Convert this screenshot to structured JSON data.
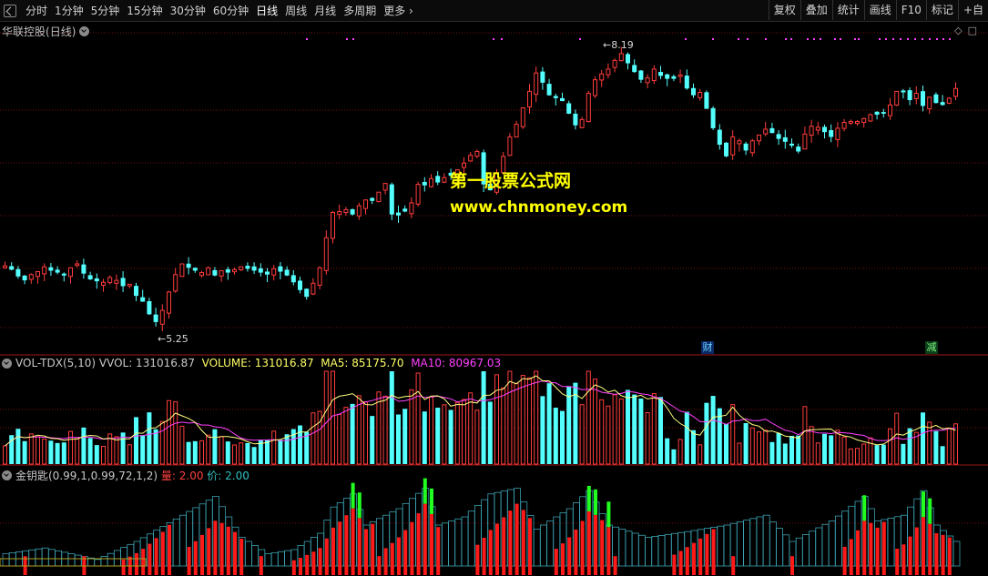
{
  "toolbar": {
    "periods": [
      "分时",
      "1分钟",
      "5分钟",
      "15分钟",
      "30分钟",
      "60分钟",
      "日线",
      "周线",
      "月线",
      "多周期",
      "更多"
    ],
    "active_period": "日线",
    "right_buttons": [
      "复权",
      "叠加",
      "统计",
      "画线",
      "F10",
      "标记",
      "+自"
    ]
  },
  "main_panel": {
    "stock_name": "华联控股",
    "period": "(日线)",
    "high_label": "8.19",
    "low_label": "5.25",
    "event_tags": [
      "财",
      "减"
    ]
  },
  "watermark": {
    "line1": "第一股票公式网",
    "line2": "www.chnmoney.com"
  },
  "volume_panel": {
    "name": "VOL-TDX(5,10)",
    "vvol": "VVOL: 131016.87",
    "volume": "VOLUME: 131016.87",
    "ma5": "MA5: 85175.70",
    "ma10": "MA10: 80967.03"
  },
  "key_panel": {
    "name": "金钥匙(0.99,1,0.99,72,1,2)",
    "liang": "量: 2.00",
    "jia": "价: 2.00"
  },
  "colors": {
    "up": "#ff3c3c",
    "down": "#54ffff",
    "grid": "#7a1010",
    "ma5": "#ffff80",
    "ma10": "#ff40ff",
    "key_red": "#ff1a1a",
    "key_green": "#20ff20",
    "key_cyan": "#3aa0b0"
  },
  "chart_data": {
    "type": "candlestick",
    "price_range": [
      5.25,
      8.19
    ],
    "closes": [
      5.93,
      5.89,
      5.82,
      5.78,
      5.84,
      5.87,
      5.92,
      5.88,
      5.86,
      5.83,
      5.91,
      5.95,
      5.85,
      5.79,
      5.77,
      5.76,
      5.81,
      5.78,
      5.72,
      5.74,
      5.62,
      5.56,
      5.43,
      5.35,
      5.47,
      5.66,
      5.84,
      5.95,
      5.91,
      5.88,
      5.86,
      5.91,
      5.83,
      5.88,
      5.86,
      5.89,
      5.92,
      5.9,
      5.88,
      5.86,
      5.84,
      5.9,
      5.87,
      5.83,
      5.76,
      5.68,
      5.61,
      5.75,
      5.91,
      6.22,
      6.48,
      6.49,
      6.51,
      6.46,
      6.55,
      6.61,
      6.6,
      6.69,
      6.78,
      6.46,
      6.45,
      6.49,
      6.58,
      6.77,
      6.76,
      6.83,
      6.79,
      6.84,
      6.86,
      6.92,
      6.99,
      7.07,
      7.11,
      6.77,
      6.71,
      6.89,
      7.06,
      7.26,
      7.39,
      7.56,
      7.73,
      7.92,
      7.82,
      7.69,
      7.66,
      7.63,
      7.5,
      7.38,
      7.44,
      7.71,
      7.85,
      7.91,
      7.96,
      8.05,
      8.12,
      8.02,
      7.93,
      7.85,
      7.87,
      7.96,
      7.89,
      7.86,
      7.86,
      7.9,
      7.76,
      7.69,
      7.72,
      7.55,
      7.35,
      7.18,
      7.06,
      7.26,
      7.22,
      7.12,
      7.22,
      7.28,
      7.34,
      7.3,
      7.24,
      7.21,
      7.17,
      7.11,
      7.29,
      7.37,
      7.36,
      7.31,
      7.26,
      7.35,
      7.41,
      7.42,
      7.42,
      7.45,
      7.49,
      7.49,
      7.5,
      7.59,
      7.73,
      7.72,
      7.64,
      7.71,
      7.58,
      7.67,
      7.61,
      7.59,
      7.66,
      7.76
    ],
    "volume_peak_index": 77,
    "indicator": "金钥匙(0.99,1,0.99,72,1,2)"
  }
}
